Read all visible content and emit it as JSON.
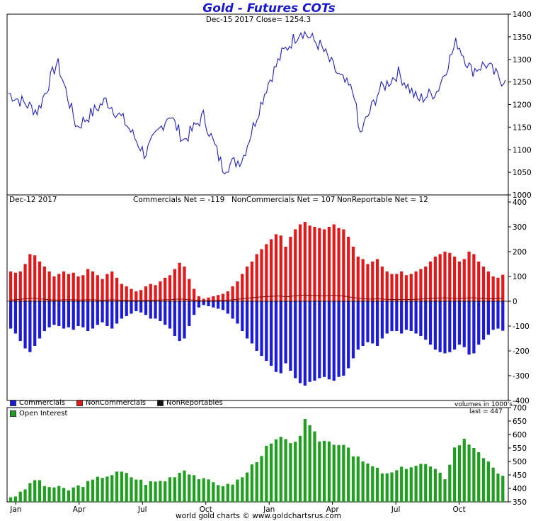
{
  "title": "Gold - Futures COTs",
  "price_header": "Dec-15  2017   Close= 1254.3",
  "cot_header": {
    "date": "Dec-12  2017",
    "commercials": "Commercials Net = -119",
    "noncommercials": "NonCommercials Net = 107",
    "nonreportable": "NonReportable Net = 12"
  },
  "volumes_note": "volumes in 1000's",
  "oi_last": "last = 447",
  "footer": "world gold charts © www.goldchartsrus.com",
  "legend": {
    "commercials": "Commercials",
    "noncommercials": "NonCommercials",
    "nonreportables": "NonReportables",
    "open_interest": "Open Interest"
  },
  "colors": {
    "price_line": "#2222bb",
    "commercials": "#1c1cd6",
    "noncommercials": "#e01a1a",
    "nonreportables": "#111111",
    "nonreportable_line": "#8b0000",
    "open_interest": "#1f9e1f",
    "title": "#1a1acc"
  },
  "chart_data": [
    {
      "type": "line",
      "panel": "price",
      "ylim": [
        1000,
        1400
      ],
      "yticks": [
        "1000",
        "1050",
        "1100",
        "1150",
        "1200",
        "1250",
        "1300",
        "1350",
        "1400"
      ],
      "xticks": [
        "Jan",
        "Apr",
        "Jul",
        "Oct",
        "Jan",
        "Apr",
        "Jul",
        "Oct"
      ],
      "x_domain_weeks": [
        0,
        102
      ],
      "x_anchor_weeks": [
        0,
        6,
        10,
        14,
        20,
        24,
        28,
        33,
        36,
        40,
        44,
        48,
        53,
        56,
        60,
        64,
        68,
        71,
        72,
        76,
        80,
        84,
        88,
        92,
        95,
        98,
        101
      ],
      "values": [
        1225,
        1185,
        1295,
        1150,
        1210,
        1160,
        1090,
        1180,
        1120,
        1175,
        1060,
        1080,
        1240,
        1310,
        1365,
        1330,
        1260,
        1225,
        1130,
        1230,
        1270,
        1210,
        1230,
        1340,
        1275,
        1290,
        1254.3
      ]
    },
    {
      "type": "bar",
      "panel": "cot",
      "ylim": [
        -400,
        400
      ],
      "yticks": [
        "-400",
        "-300",
        "-200",
        "-100",
        "0",
        "100",
        "200",
        "300",
        "400"
      ],
      "x_domain_weeks": [
        0,
        102
      ],
      "series": [
        {
          "name": "NonCommercials",
          "values": [
            120,
            115,
            120,
            150,
            190,
            185,
            160,
            140,
            120,
            100,
            110,
            120,
            110,
            115,
            100,
            105,
            130,
            120,
            105,
            90,
            110,
            120,
            95,
            70,
            60,
            50,
            40,
            45,
            60,
            70,
            65,
            80,
            95,
            105,
            130,
            155,
            140,
            90,
            50,
            20,
            10,
            15,
            20,
            25,
            30,
            40,
            60,
            80,
            110,
            140,
            160,
            190,
            210,
            230,
            250,
            270,
            265,
            220,
            260,
            290,
            310,
            320,
            305,
            300,
            295,
            290,
            300,
            310,
            295,
            290,
            260,
            220,
            180,
            170,
            150,
            160,
            170,
            140,
            120,
            110,
            110,
            120,
            105,
            110,
            120,
            130,
            140,
            160,
            180,
            190,
            200,
            195,
            180,
            160,
            170,
            200,
            190,
            160,
            140,
            120,
            100,
            95,
            107
          ]
        },
        {
          "name": "Commercials",
          "values": [
            -110,
            -130,
            -160,
            -190,
            -205,
            -180,
            -150,
            -120,
            -105,
            -95,
            -100,
            -110,
            -105,
            -115,
            -100,
            -105,
            -120,
            -110,
            -95,
            -85,
            -100,
            -110,
            -90,
            -70,
            -60,
            -50,
            -40,
            -45,
            -55,
            -70,
            -70,
            -80,
            -95,
            -110,
            -140,
            -160,
            -150,
            -100,
            -55,
            -25,
            -15,
            -20,
            -25,
            -30,
            -35,
            -50,
            -70,
            -90,
            -120,
            -150,
            -170,
            -200,
            -220,
            -240,
            -260,
            -285,
            -290,
            -250,
            -280,
            -310,
            -330,
            -340,
            -325,
            -320,
            -310,
            -305,
            -315,
            -320,
            -305,
            -300,
            -270,
            -230,
            -195,
            -180,
            -165,
            -170,
            -180,
            -150,
            -130,
            -120,
            -120,
            -130,
            -115,
            -120,
            -130,
            -140,
            -155,
            -175,
            -195,
            -205,
            -210,
            -205,
            -195,
            -175,
            -185,
            -215,
            -210,
            -175,
            -155,
            -135,
            -115,
            -110,
            -119
          ]
        },
        {
          "name": "NonReportables",
          "values": [
            5,
            6,
            8,
            10,
            12,
            12,
            10,
            8,
            6,
            5,
            5,
            6,
            6,
            6,
            5,
            5,
            6,
            6,
            5,
            4,
            5,
            6,
            5,
            4,
            3,
            3,
            2,
            3,
            3,
            4,
            4,
            5,
            6,
            6,
            8,
            9,
            8,
            6,
            4,
            2,
            1,
            2,
            2,
            3,
            3,
            4,
            6,
            8,
            10,
            12,
            14,
            16,
            18,
            19,
            20,
            21,
            21,
            18,
            20,
            22,
            24,
            25,
            24,
            23,
            22,
            22,
            23,
            24,
            22,
            21,
            18,
            15,
            12,
            10,
            9,
            9,
            10,
            9,
            8,
            7,
            7,
            8,
            7,
            7,
            8,
            9,
            10,
            11,
            12,
            13,
            14,
            13,
            12,
            11,
            12,
            14,
            14,
            12,
            11,
            10,
            10,
            11,
            12
          ]
        }
      ]
    },
    {
      "type": "bar",
      "panel": "open_interest",
      "ylim": [
        350,
        700
      ],
      "yticks": [
        "350",
        "400",
        "450",
        "500",
        "550",
        "600",
        "650",
        "700"
      ],
      "xticks": [
        "Jan",
        "Apr",
        "Jul",
        "Oct",
        "Jan",
        "Apr",
        "Jul",
        "Oct"
      ],
      "x_domain_weeks": [
        0,
        102
      ],
      "series": [
        {
          "name": "Open Interest",
          "x_anchor_weeks": [
            0,
            2,
            5,
            7,
            12,
            16,
            19,
            23,
            28,
            32,
            36,
            40,
            45,
            48,
            53,
            56,
            58,
            60,
            61,
            64,
            67,
            70,
            71,
            74,
            78,
            82,
            86,
            90,
            92,
            94,
            97,
            101
          ],
          "values": [
            370,
            380,
            435,
            410,
            395,
            420,
            445,
            460,
            420,
            430,
            470,
            430,
            410,
            440,
            550,
            590,
            560,
            600,
            650,
            580,
            570,
            560,
            520,
            490,
            450,
            480,
            490,
            440,
            550,
            580,
            540,
            447
          ]
        }
      ]
    }
  ]
}
